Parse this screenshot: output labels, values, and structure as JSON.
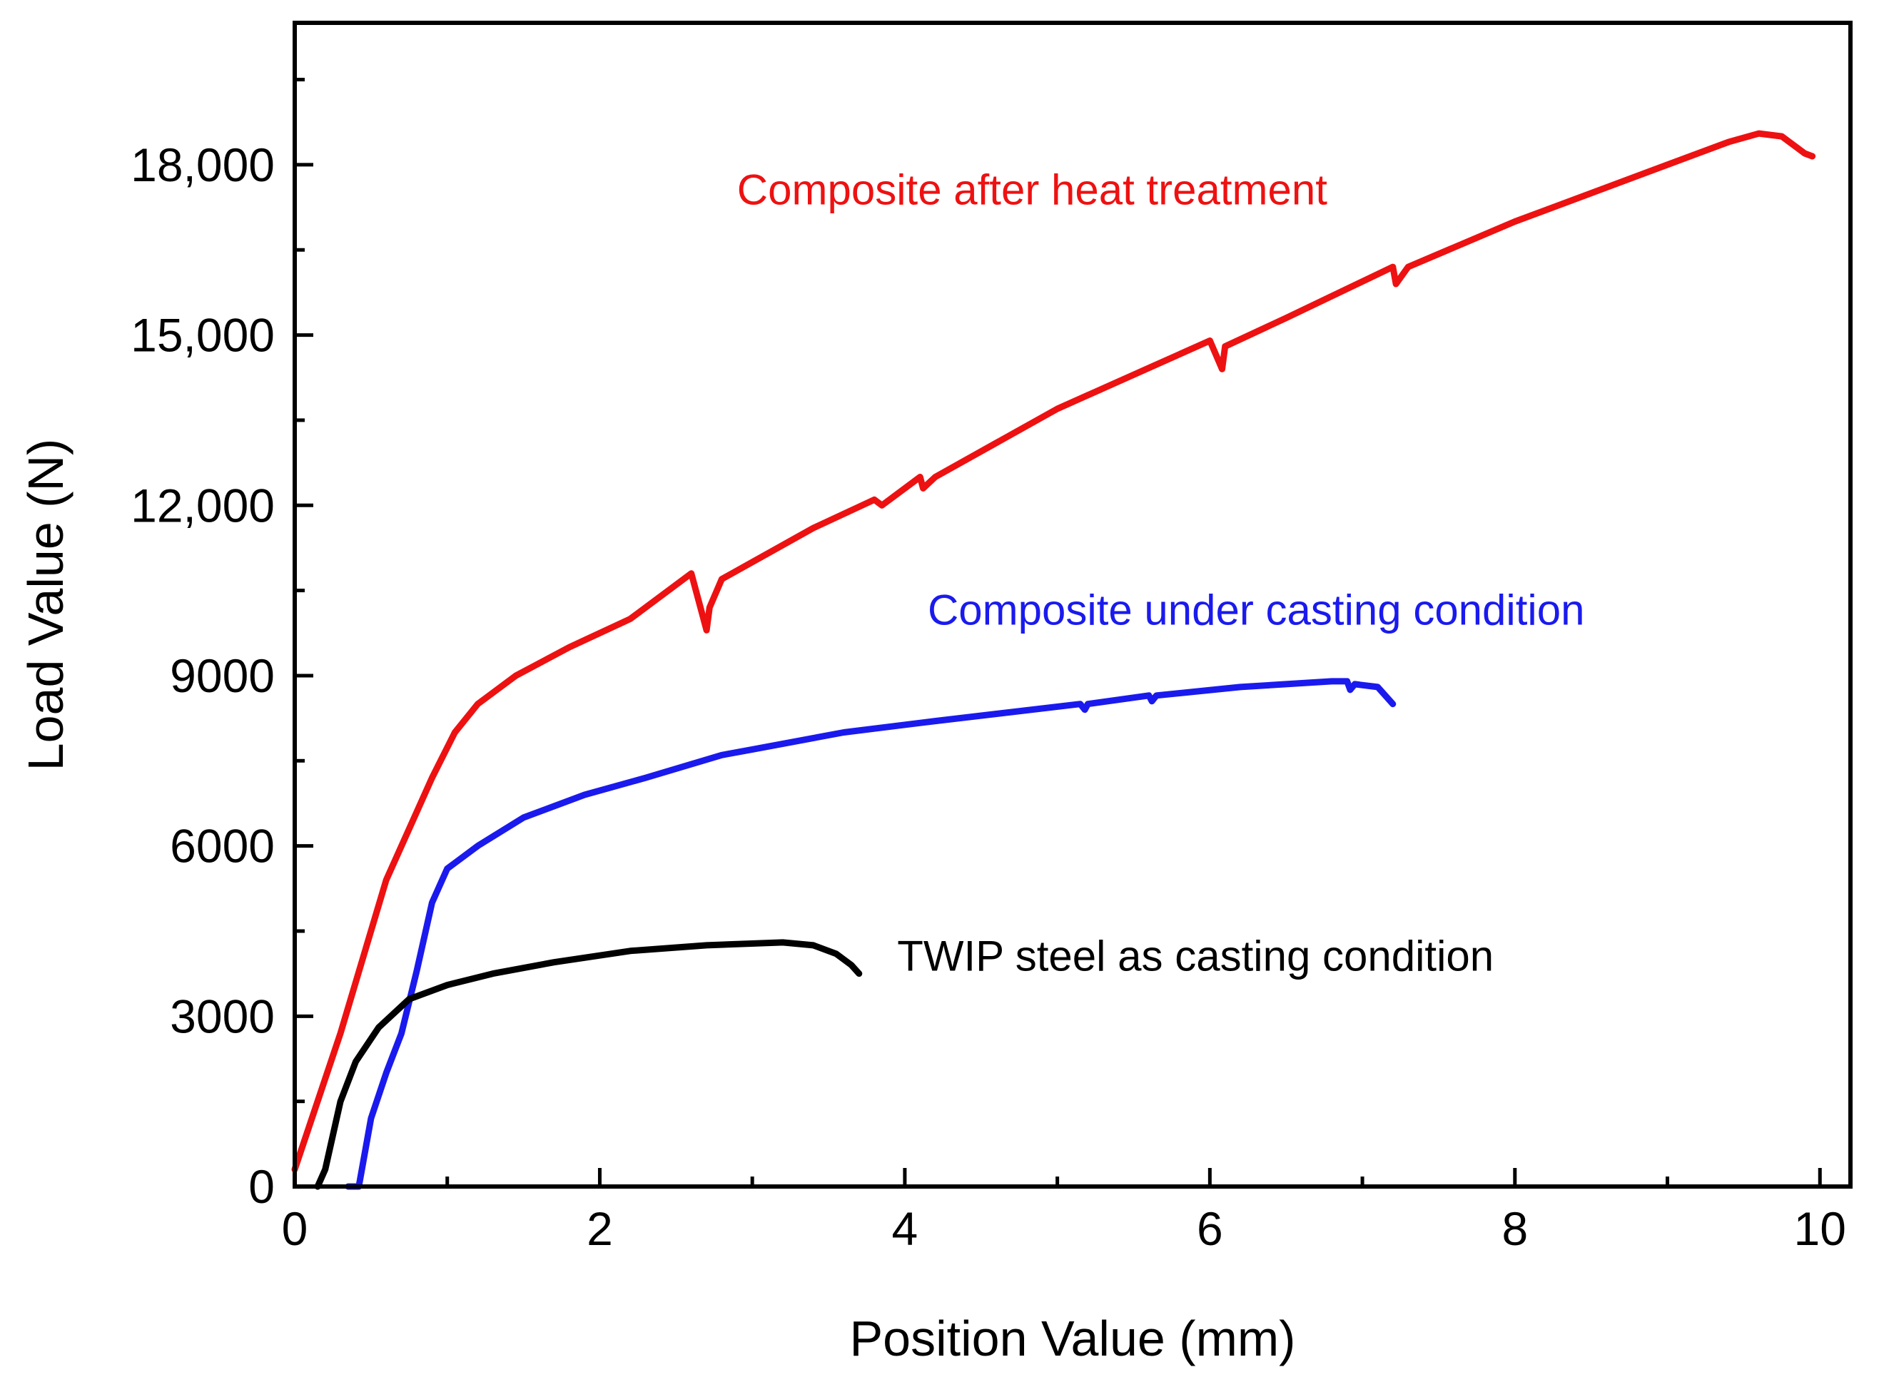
{
  "chart_data": {
    "type": "line",
    "title": "",
    "xlabel": "Position Value (mm)",
    "ylabel": "Load Value (N)",
    "xlim": [
      0,
      10.2
    ],
    "ylim": [
      0,
      20500
    ],
    "grid": false,
    "x_ticks": [
      0,
      2,
      4,
      6,
      8,
      10
    ],
    "x_tick_labels": [
      "0",
      "2",
      "4",
      "6",
      "8",
      "10"
    ],
    "y_ticks": [
      0,
      3000,
      6000,
      9000,
      12000,
      15000,
      18000
    ],
    "y_tick_labels": [
      "0",
      "3000",
      "6000",
      "9000",
      "12,000",
      "15,000",
      "18,000"
    ],
    "series": [
      {
        "name": "Composite after heat treatment",
        "color": "#ee1111",
        "label_anchor": [
          2.9,
          17300
        ],
        "points": [
          [
            0,
            300
          ],
          [
            0.3,
            2700
          ],
          [
            0.6,
            5400
          ],
          [
            0.9,
            7200
          ],
          [
            1.05,
            8000
          ],
          [
            1.2,
            8500
          ],
          [
            1.45,
            9000
          ],
          [
            1.8,
            9500
          ],
          [
            2.2,
            10000
          ],
          [
            2.6,
            10800
          ],
          [
            2.65,
            10300
          ],
          [
            2.7,
            9800
          ],
          [
            2.72,
            10200
          ],
          [
            2.8,
            10700
          ],
          [
            3.0,
            11000
          ],
          [
            3.4,
            11600
          ],
          [
            3.8,
            12100
          ],
          [
            3.85,
            12000
          ],
          [
            4.1,
            12500
          ],
          [
            4.12,
            12300
          ],
          [
            4.2,
            12500
          ],
          [
            5.0,
            13700
          ],
          [
            6.0,
            14900
          ],
          [
            6.08,
            14400
          ],
          [
            6.1,
            14800
          ],
          [
            6.5,
            15300
          ],
          [
            7.2,
            16200
          ],
          [
            7.22,
            15900
          ],
          [
            7.3,
            16200
          ],
          [
            8.0,
            17000
          ],
          [
            9.0,
            18000
          ],
          [
            9.4,
            18400
          ],
          [
            9.6,
            18550
          ],
          [
            9.75,
            18500
          ],
          [
            9.85,
            18300
          ],
          [
            9.9,
            18200
          ],
          [
            9.95,
            18150
          ]
        ]
      },
      {
        "name": "Composite under casting condition",
        "color": "#1a1aee",
        "label_anchor": [
          4.15,
          9900
        ],
        "points": [
          [
            0.35,
            0
          ],
          [
            0.42,
            0
          ],
          [
            0.5,
            1200
          ],
          [
            0.6,
            2000
          ],
          [
            0.7,
            2700
          ],
          [
            0.8,
            3800
          ],
          [
            0.9,
            5000
          ],
          [
            1.0,
            5600
          ],
          [
            1.2,
            6000
          ],
          [
            1.5,
            6500
          ],
          [
            1.8,
            6800
          ],
          [
            1.9,
            6900
          ],
          [
            2.3,
            7200
          ],
          [
            2.8,
            7600
          ],
          [
            3.0,
            7700
          ],
          [
            3.6,
            8000
          ],
          [
            4.2,
            8200
          ],
          [
            5.15,
            8500
          ],
          [
            5.18,
            8400
          ],
          [
            5.2,
            8500
          ],
          [
            5.6,
            8650
          ],
          [
            5.62,
            8550
          ],
          [
            5.65,
            8650
          ],
          [
            6.2,
            8800
          ],
          [
            6.8,
            8900
          ],
          [
            6.9,
            8900
          ],
          [
            6.92,
            8750
          ],
          [
            6.95,
            8850
          ],
          [
            7.1,
            8800
          ],
          [
            7.2,
            8500
          ]
        ]
      },
      {
        "name": "TWIP steel as casting condition",
        "color": "#000000",
        "label_anchor": [
          3.95,
          3800
        ],
        "points": [
          [
            0.15,
            0
          ],
          [
            0.2,
            300
          ],
          [
            0.3,
            1500
          ],
          [
            0.4,
            2200
          ],
          [
            0.55,
            2800
          ],
          [
            0.75,
            3300
          ],
          [
            1.0,
            3550
          ],
          [
            1.3,
            3750
          ],
          [
            1.7,
            3950
          ],
          [
            2.2,
            4150
          ],
          [
            2.7,
            4250
          ],
          [
            3.2,
            4300
          ],
          [
            3.4,
            4250
          ],
          [
            3.55,
            4100
          ],
          [
            3.65,
            3900
          ],
          [
            3.7,
            3750
          ]
        ]
      }
    ]
  }
}
